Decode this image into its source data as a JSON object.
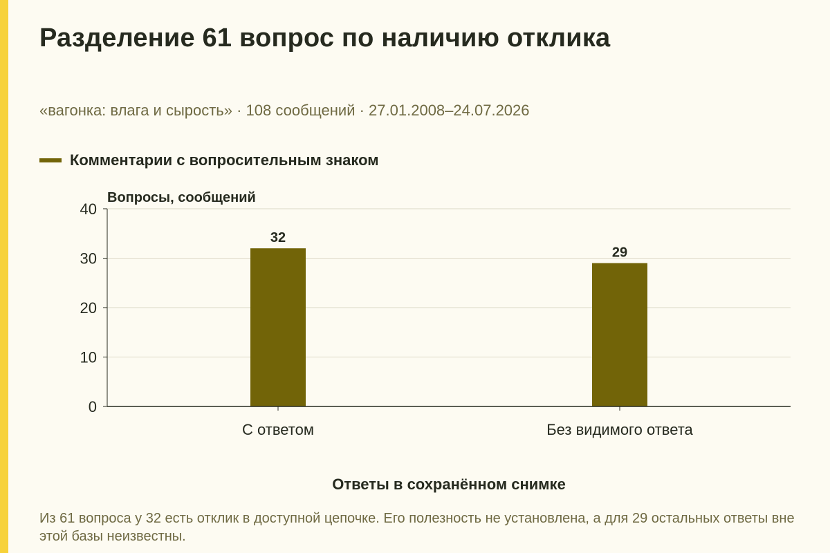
{
  "header": {
    "title": "Разделение 61 вопрос по наличию отклика",
    "subtitle": "«вагонка: влага и сырость» · 108 сообщений · 27.01.2008–24.07.2026"
  },
  "legend": {
    "label": "Комментарии с вопросительным знаком"
  },
  "footnote": "Из 61 вопроса у 32 есть отклик в доступной цепочке. Его полезность не установлена, а для 29 остальных ответы вне этой базы неизвестны.",
  "colors": {
    "accent": "#f7d23a",
    "bar": "#726408",
    "background": "#fdfbf2"
  },
  "chart_data": {
    "type": "bar",
    "categories": [
      "С ответом",
      "Без видимого ответа"
    ],
    "series": [
      {
        "name": "Комментарии с вопросительным знаком",
        "values": [
          32,
          29
        ]
      }
    ],
    "xlabel": "Ответы в сохранённом снимке",
    "ylabel": "Вопросы, сообщений",
    "ylim": [
      0,
      40
    ],
    "yticks": [
      0,
      10,
      20,
      30,
      40
    ],
    "data_labels": [
      "32",
      "29"
    ],
    "grid": true,
    "legend_position": "top-left"
  }
}
